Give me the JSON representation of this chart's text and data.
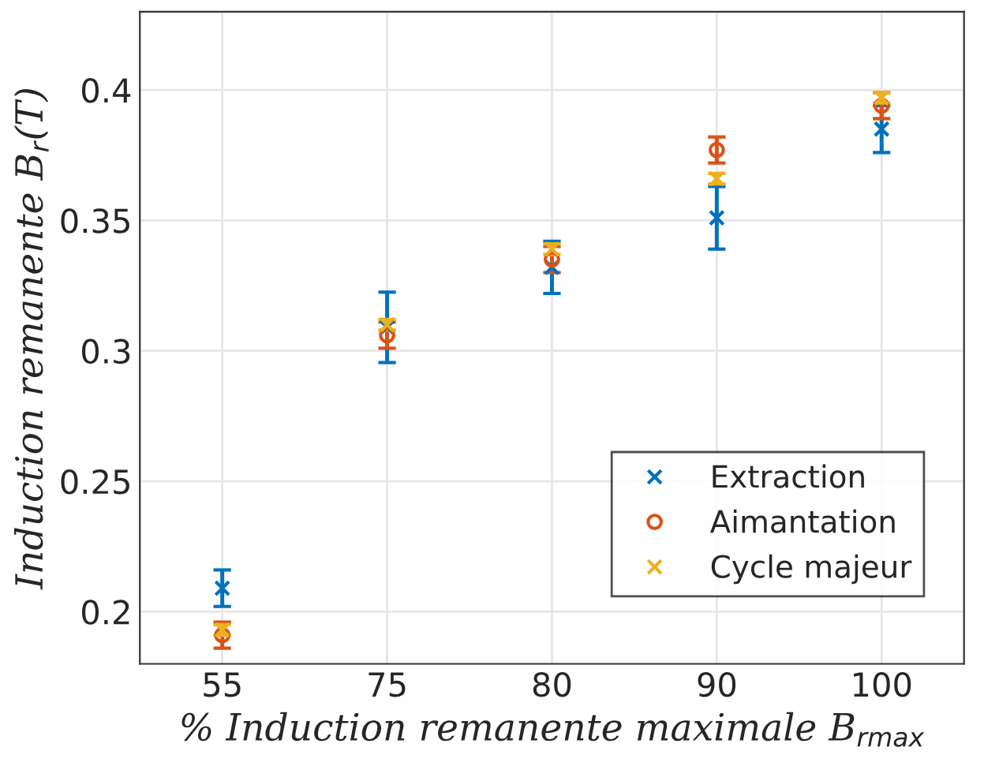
{
  "chart_data": {
    "type": "scatter",
    "categories": [
      "55",
      "75",
      "80",
      "90",
      "100"
    ],
    "xlabel": "% Induction remanente maximale B$_{rmax}$",
    "ylabel": "Induction remanente B$_{r}$(T)",
    "ylim": [
      0.18,
      0.43
    ],
    "yticks": [
      0.2,
      0.25,
      0.3,
      0.35,
      0.4
    ],
    "grid": true,
    "legend": "bottom right",
    "series": [
      {
        "name": "Extraction",
        "color": "#0072bd",
        "marker": "cross",
        "values": [
          0.209,
          0.309,
          0.332,
          0.351,
          0.385
        ],
        "errors": [
          0.007,
          0.0135,
          0.01,
          0.012,
          0.009
        ]
      },
      {
        "name": "Aimantation",
        "color": "#d95319",
        "marker": "circle",
        "values": [
          0.191,
          0.306,
          0.335,
          0.377,
          0.394
        ],
        "errors": [
          0.005,
          0.005,
          0.005,
          0.005,
          0.005
        ]
      },
      {
        "name": "Cycle majeur",
        "color": "#edb120",
        "marker": "cross",
        "values": [
          0.193,
          0.31,
          0.339,
          0.366,
          0.397
        ],
        "errors": [
          0.002,
          0.002,
          0.002,
          0.002,
          0.002
        ]
      }
    ]
  }
}
